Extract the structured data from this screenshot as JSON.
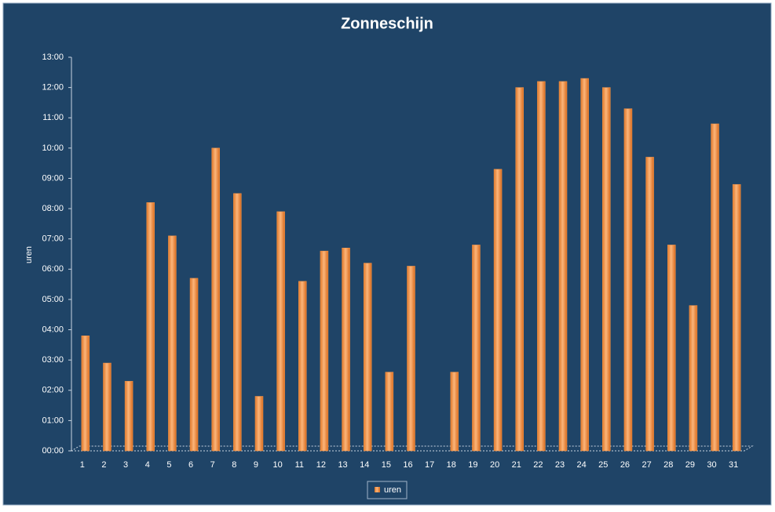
{
  "chart_data": {
    "type": "bar",
    "title": "Zonneschijn",
    "y_label": "uren",
    "categories": [
      "1",
      "2",
      "3",
      "4",
      "5",
      "6",
      "7",
      "8",
      "9",
      "10",
      "11",
      "12",
      "13",
      "14",
      "15",
      "16",
      "17",
      "18",
      "19",
      "20",
      "21",
      "22",
      "23",
      "24",
      "25",
      "26",
      "27",
      "28",
      "29",
      "30",
      "31"
    ],
    "series": [
      {
        "name": "uren",
        "color": "#f79646",
        "values": [
          3.8,
          2.9,
          2.3,
          8.2,
          7.1,
          5.7,
          10.0,
          8.5,
          1.8,
          7.9,
          5.6,
          6.6,
          6.7,
          6.2,
          2.6,
          6.1,
          0,
          2.6,
          6.8,
          9.3,
          12.0,
          12.2,
          12.2,
          12.3,
          12.0,
          11.3,
          9.7,
          6.8,
          4.8,
          10.8,
          8.8
        ]
      }
    ],
    "ylim": [
      0,
      13
    ],
    "yticks": [
      {
        "value": 0,
        "label": "00:00"
      },
      {
        "value": 1,
        "label": "01:00"
      },
      {
        "value": 2,
        "label": "02:00"
      },
      {
        "value": 3,
        "label": "03:00"
      },
      {
        "value": 4,
        "label": "04:00"
      },
      {
        "value": 5,
        "label": "05:00"
      },
      {
        "value": 6,
        "label": "06:00"
      },
      {
        "value": 7,
        "label": "07:00"
      },
      {
        "value": 8,
        "label": "08:00"
      },
      {
        "value": 9,
        "label": "09:00"
      },
      {
        "value": 10,
        "label": "10:00"
      },
      {
        "value": 11,
        "label": "11:00"
      },
      {
        "value": 12,
        "label": "12:00"
      },
      {
        "value": 13,
        "label": "13:00"
      }
    ],
    "legend": "bottom"
  }
}
